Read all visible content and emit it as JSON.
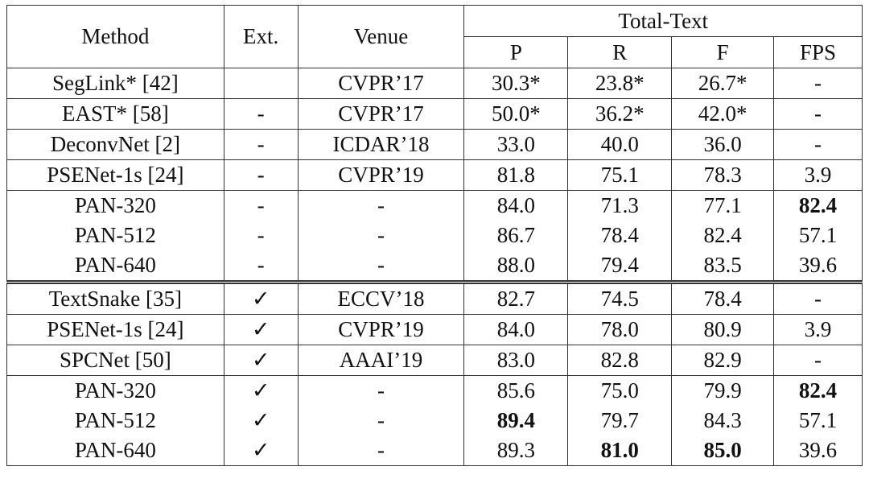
{
  "table": {
    "header": {
      "method": "Method",
      "ext": "Ext.",
      "venue": "Venue",
      "dataset": "Total-Text",
      "metrics": [
        "P",
        "R",
        "F",
        "FPS"
      ]
    },
    "blocks": [
      [
        [
          {
            "cells": [
              "SegLink* [42]",
              null,
              "CVPR’17",
              "30.3*",
              "23.8*",
              "26.7*",
              "-"
            ]
          }
        ],
        [
          {
            "cells": [
              "EAST* [58]",
              "-",
              "CVPR’17",
              "50.0*",
              "36.2*",
              "42.0*",
              "-"
            ]
          }
        ],
        [
          {
            "cells": [
              "DeconvNet [2]",
              "-",
              "ICDAR’18",
              "33.0",
              "40.0",
              "36.0",
              "-"
            ]
          }
        ],
        [
          {
            "cells": [
              "PSENet-1s [24]",
              "-",
              "CVPR’19",
              "81.8",
              "75.1",
              "78.3",
              "3.9"
            ]
          }
        ],
        [
          {
            "cells": [
              "PAN-320",
              "-",
              "-",
              "84.0",
              "71.3",
              "77.1",
              "82.4"
            ],
            "bold": [
              6
            ]
          },
          {
            "cells": [
              "PAN-512",
              "-",
              "-",
              "86.7",
              "78.4",
              "82.4",
              "57.1"
            ]
          },
          {
            "cells": [
              "PAN-640",
              "-",
              "-",
              "88.0",
              "79.4",
              "83.5",
              "39.6"
            ]
          }
        ]
      ],
      [
        [
          {
            "cells": [
              "TextSnake [35]",
              "✓",
              "ECCV’18",
              "82.7",
              "74.5",
              "78.4",
              "-"
            ]
          }
        ],
        [
          {
            "cells": [
              "PSENet-1s [24]",
              "✓",
              "CVPR’19",
              "84.0",
              "78.0",
              "80.9",
              "3.9"
            ]
          }
        ],
        [
          {
            "cells": [
              "SPCNet [50]",
              "✓",
              "AAAI’19",
              "83.0",
              "82.8",
              "82.9",
              "-"
            ]
          }
        ],
        [
          {
            "cells": [
              "PAN-320",
              "✓",
              "-",
              "85.6",
              "75.0",
              "79.9",
              "82.4"
            ],
            "bold": [
              6
            ]
          },
          {
            "cells": [
              "PAN-512",
              "✓",
              "-",
              "89.4",
              "79.7",
              "84.3",
              "57.1"
            ],
            "bold": [
              3
            ]
          },
          {
            "cells": [
              "PAN-640",
              "✓",
              "-",
              "89.3",
              "81.0",
              "85.0",
              "39.6"
            ],
            "bold": [
              4,
              5
            ]
          }
        ]
      ]
    ]
  }
}
